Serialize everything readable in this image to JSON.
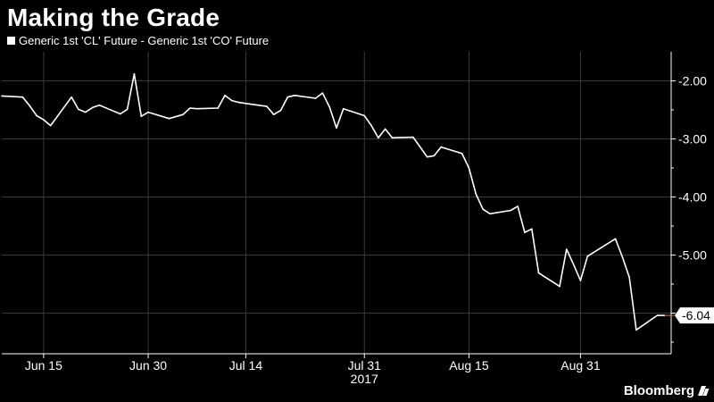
{
  "title": "Making the Grade",
  "legend": {
    "label": "Generic 1st 'CL' Future - Generic 1st 'CO' Future"
  },
  "brand": "Bloomberg",
  "colors": {
    "background": "#000000",
    "line": "#ffffff",
    "grid": "#3a3a3a",
    "last_value_tick": "#e07a30"
  },
  "chart_data": {
    "type": "line",
    "title": "Making the Grade",
    "series": [
      {
        "name": "Generic 1st 'CL' Future - Generic 1st 'CO' Future",
        "points": [
          [
            "2017-06-09",
            -2.26
          ],
          [
            "2017-06-12",
            -2.28
          ],
          [
            "2017-06-13",
            -2.43
          ],
          [
            "2017-06-14",
            -2.6
          ],
          [
            "2017-06-15",
            -2.67
          ],
          [
            "2017-06-16",
            -2.77
          ],
          [
            "2017-06-19",
            -2.28
          ],
          [
            "2017-06-20",
            -2.49
          ],
          [
            "2017-06-21",
            -2.54
          ],
          [
            "2017-06-22",
            -2.46
          ],
          [
            "2017-06-23",
            -2.42
          ],
          [
            "2017-06-26",
            -2.57
          ],
          [
            "2017-06-27",
            -2.49
          ],
          [
            "2017-06-28",
            -1.88
          ],
          [
            "2017-06-29",
            -2.61
          ],
          [
            "2017-06-30",
            -2.54
          ],
          [
            "2017-07-03",
            -2.65
          ],
          [
            "2017-07-05",
            -2.58
          ],
          [
            "2017-07-06",
            -2.47
          ],
          [
            "2017-07-07",
            -2.48
          ],
          [
            "2017-07-10",
            -2.47
          ],
          [
            "2017-07-11",
            -2.25
          ],
          [
            "2017-07-12",
            -2.34
          ],
          [
            "2017-07-13",
            -2.37
          ],
          [
            "2017-07-14",
            -2.39
          ],
          [
            "2017-07-17",
            -2.44
          ],
          [
            "2017-07-18",
            -2.58
          ],
          [
            "2017-07-19",
            -2.51
          ],
          [
            "2017-07-20",
            -2.28
          ],
          [
            "2017-07-21",
            -2.25
          ],
          [
            "2017-07-24",
            -2.3
          ],
          [
            "2017-07-25",
            -2.21
          ],
          [
            "2017-07-26",
            -2.45
          ],
          [
            "2017-07-27",
            -2.81
          ],
          [
            "2017-07-28",
            -2.48
          ],
          [
            "2017-07-31",
            -2.6
          ],
          [
            "2017-08-01",
            -2.77
          ],
          [
            "2017-08-02",
            -2.98
          ],
          [
            "2017-08-03",
            -2.83
          ],
          [
            "2017-08-04",
            -2.98
          ],
          [
            "2017-08-07",
            -2.97
          ],
          [
            "2017-08-08",
            -3.14
          ],
          [
            "2017-08-09",
            -3.31
          ],
          [
            "2017-08-10",
            -3.29
          ],
          [
            "2017-08-11",
            -3.14
          ],
          [
            "2017-08-14",
            -3.25
          ],
          [
            "2017-08-15",
            -3.5
          ],
          [
            "2017-08-16",
            -3.95
          ],
          [
            "2017-08-17",
            -4.21
          ],
          [
            "2017-08-18",
            -4.29
          ],
          [
            "2017-08-21",
            -4.23
          ],
          [
            "2017-08-22",
            -4.16
          ],
          [
            "2017-08-23",
            -4.61
          ],
          [
            "2017-08-24",
            -4.55
          ],
          [
            "2017-08-25",
            -5.31
          ],
          [
            "2017-08-28",
            -5.54
          ],
          [
            "2017-08-29",
            -4.9
          ],
          [
            "2017-08-30",
            -5.16
          ],
          [
            "2017-08-31",
            -5.44
          ],
          [
            "2017-09-01",
            -5.02
          ],
          [
            "2017-09-05",
            -4.72
          ],
          [
            "2017-09-06",
            -5.03
          ],
          [
            "2017-09-07",
            -5.38
          ],
          [
            "2017-09-08",
            -6.29
          ],
          [
            "2017-09-11",
            -6.04
          ],
          [
            "2017-09-12",
            -6.04
          ]
        ]
      }
    ],
    "last_value_label": "-6.04",
    "x_axis": {
      "range": [
        "2017-06-09",
        "2017-09-13"
      ],
      "ticks": [
        {
          "date": "2017-06-15",
          "label": "Jun 15"
        },
        {
          "date": "2017-06-30",
          "label": "Jun 30"
        },
        {
          "date": "2017-07-14",
          "label": "Jul 14"
        },
        {
          "date": "2017-07-31",
          "label": "Jul 31"
        },
        {
          "date": "2017-08-15",
          "label": "Aug 15"
        },
        {
          "date": "2017-08-31",
          "label": "Aug 31"
        }
      ],
      "year_label": "2017"
    },
    "y_axis": {
      "range": [
        -6.7,
        -1.5
      ],
      "ticks": [
        {
          "value": -2,
          "label": "-2.00"
        },
        {
          "value": -3,
          "label": "-3.00"
        },
        {
          "value": -4,
          "label": "-4.00"
        },
        {
          "value": -5,
          "label": "-5.00"
        },
        {
          "value": -6,
          "label": ""
        }
      ],
      "position": "right"
    },
    "grid": true,
    "legend_position": "top-left"
  }
}
